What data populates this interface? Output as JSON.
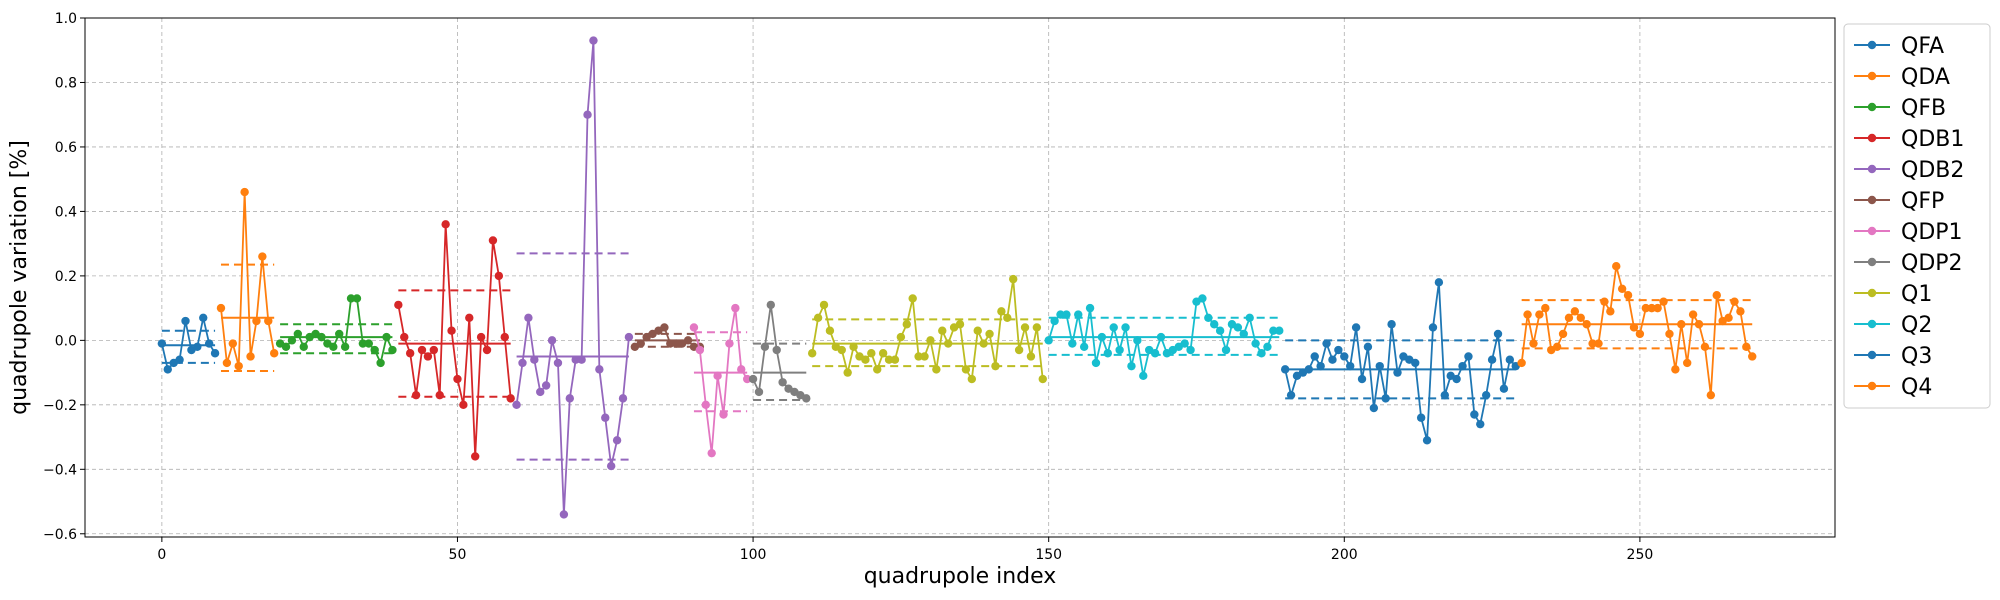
{
  "chart_data": {
    "type": "line",
    "xlabel": "quadrupole index",
    "ylabel": "quadrupole variation [%]",
    "xlim": [
      -13,
      283
    ],
    "ylim": [
      -0.61,
      1.0
    ],
    "xticks": [
      0,
      50,
      100,
      150,
      200,
      250
    ],
    "xtick_labels": [
      "0",
      "50",
      "100",
      "150",
      "200",
      "250"
    ],
    "yticks": [
      -0.6,
      -0.4,
      -0.2,
      0.0,
      0.2,
      0.4,
      0.6,
      0.8,
      1.0
    ],
    "ytick_labels": [
      "−0.6",
      "−0.4",
      "−0.2",
      "0.0",
      "0.2",
      "0.4",
      "0.6",
      "0.8",
      "1.0"
    ],
    "grid": true,
    "legend_position": "outside-right",
    "series": [
      {
        "name": "QFA",
        "color": "#1f77b4",
        "x_start": 0,
        "values": [
          -0.01,
          -0.09,
          -0.07,
          -0.06,
          0.06,
          -0.03,
          -0.02,
          0.07,
          -0.01,
          -0.04
        ],
        "mean": -0.015,
        "upper": 0.03,
        "lower": -0.07
      },
      {
        "name": "QDA",
        "color": "#ff7f0e",
        "x_start": 10,
        "values": [
          0.1,
          -0.07,
          -0.01,
          -0.08,
          0.46,
          -0.05,
          0.06,
          0.26,
          0.06,
          -0.04
        ],
        "mean": 0.07,
        "upper": 0.235,
        "lower": -0.095
      },
      {
        "name": "QFB",
        "color": "#2ca02c",
        "x_start": 20,
        "values": [
          -0.01,
          -0.02,
          0.0,
          0.02,
          -0.02,
          0.01,
          0.02,
          0.01,
          -0.01,
          -0.02,
          0.02,
          -0.02,
          0.13,
          0.13,
          -0.01,
          -0.01,
          -0.03,
          -0.07,
          0.01,
          -0.03
        ],
        "mean": 0.01,
        "upper": 0.05,
        "lower": -0.04
      },
      {
        "name": "QDB1",
        "color": "#d62728",
        "x_start": 40,
        "values": [
          0.11,
          0.01,
          -0.04,
          -0.17,
          -0.03,
          -0.05,
          -0.03,
          -0.17,
          0.36,
          0.03,
          -0.12,
          -0.2,
          0.07,
          -0.36,
          0.01,
          -0.03,
          0.31,
          0.2,
          0.01,
          -0.18
        ],
        "mean": -0.01,
        "upper": 0.155,
        "lower": -0.175
      },
      {
        "name": "QDB2",
        "color": "#9467bd",
        "x_start": 60,
        "values": [
          -0.2,
          -0.07,
          0.07,
          -0.06,
          -0.16,
          -0.14,
          0.0,
          -0.07,
          -0.54,
          -0.18,
          -0.06,
          -0.06,
          0.7,
          0.93,
          -0.09,
          -0.24,
          -0.39,
          -0.31,
          -0.18,
          0.01
        ],
        "mean": -0.05,
        "upper": 0.27,
        "lower": -0.37
      },
      {
        "name": "QFP",
        "color": "#8c564b",
        "x_start": 80,
        "values": [
          -0.02,
          -0.01,
          0.01,
          0.02,
          0.03,
          0.04,
          -0.01,
          -0.01,
          -0.01,
          0.0,
          -0.02,
          -0.02
        ],
        "mean": 0.0,
        "upper": 0.02,
        "lower": -0.02
      },
      {
        "name": "QDP1",
        "color": "#e377c2",
        "x_start": 90,
        "values": [
          0.04,
          -0.03,
          -0.2,
          -0.35,
          -0.11,
          -0.23,
          -0.01,
          0.1,
          -0.09,
          -0.12
        ],
        "mean": -0.1,
        "upper": 0.025,
        "lower": -0.22
      },
      {
        "name": "QDP2",
        "color": "#7f7f7f",
        "x_start": 100,
        "values": [
          -0.12,
          -0.16,
          -0.02,
          0.11,
          -0.03,
          -0.13,
          -0.15,
          -0.16,
          -0.17,
          -0.18
        ],
        "mean": -0.1,
        "upper": -0.01,
        "lower": -0.185
      },
      {
        "name": "Q1",
        "color": "#bcbd22",
        "x_start": 110,
        "values": [
          -0.04,
          0.07,
          0.11,
          0.03,
          -0.02,
          -0.03,
          -0.1,
          -0.02,
          -0.05,
          -0.06,
          -0.04,
          -0.09,
          -0.04,
          -0.06,
          -0.06,
          0.01,
          0.05,
          0.13,
          -0.05,
          -0.05,
          0.0,
          -0.09,
          0.03,
          -0.01,
          0.04,
          0.05,
          -0.09,
          -0.12,
          0.03,
          -0.01,
          0.02,
          -0.08,
          0.09,
          0.07,
          0.19,
          -0.03,
          0.04,
          -0.05,
          0.04,
          -0.12
        ],
        "mean": -0.01,
        "upper": 0.065,
        "lower": -0.08
      },
      {
        "name": "Q2",
        "color": "#17becf",
        "x_start": 150,
        "values": [
          0.0,
          0.06,
          0.08,
          0.08,
          -0.01,
          0.08,
          -0.02,
          0.1,
          -0.07,
          0.01,
          -0.04,
          0.04,
          -0.03,
          0.04,
          -0.08,
          0.0,
          -0.11,
          -0.03,
          -0.04,
          0.01,
          -0.04,
          -0.03,
          -0.02,
          -0.01,
          -0.03,
          0.12,
          0.13,
          0.07,
          0.05,
          0.03,
          -0.03,
          0.05,
          0.04,
          0.02,
          0.07,
          -0.01,
          -0.04,
          -0.02,
          0.03,
          0.03
        ],
        "mean": 0.01,
        "upper": 0.07,
        "lower": -0.045
      },
      {
        "name": "Q3",
        "color": "#1f77b4",
        "x_start": 190,
        "values": [
          -0.09,
          -0.17,
          -0.11,
          -0.1,
          -0.09,
          -0.05,
          -0.08,
          -0.01,
          -0.06,
          -0.03,
          -0.05,
          -0.08,
          0.04,
          -0.12,
          -0.02,
          -0.21,
          -0.08,
          -0.18,
          0.05,
          -0.1,
          -0.05,
          -0.06,
          -0.07,
          -0.24,
          -0.31,
          0.04,
          0.18,
          -0.17,
          -0.11,
          -0.12,
          -0.08,
          -0.05,
          -0.23,
          -0.26,
          -0.17,
          -0.06,
          0.02,
          -0.15,
          -0.06,
          -0.08
        ],
        "mean": -0.09,
        "upper": 0.0,
        "lower": -0.18
      },
      {
        "name": "Q4",
        "color": "#ff7f0e",
        "x_start": 230,
        "values": [
          -0.07,
          0.08,
          -0.01,
          0.08,
          0.1,
          -0.03,
          -0.02,
          0.02,
          0.07,
          0.09,
          0.07,
          0.05,
          -0.01,
          -0.01,
          0.12,
          0.09,
          0.23,
          0.16,
          0.14,
          0.04,
          0.02,
          0.1,
          0.1,
          0.1,
          0.12,
          0.02,
          -0.09,
          0.05,
          -0.07,
          0.08,
          0.05,
          -0.02,
          -0.17,
          0.14,
          0.06,
          0.07,
          0.12,
          0.09,
          -0.02,
          -0.05
        ],
        "mean": 0.05,
        "upper": 0.125,
        "lower": -0.025
      }
    ]
  }
}
